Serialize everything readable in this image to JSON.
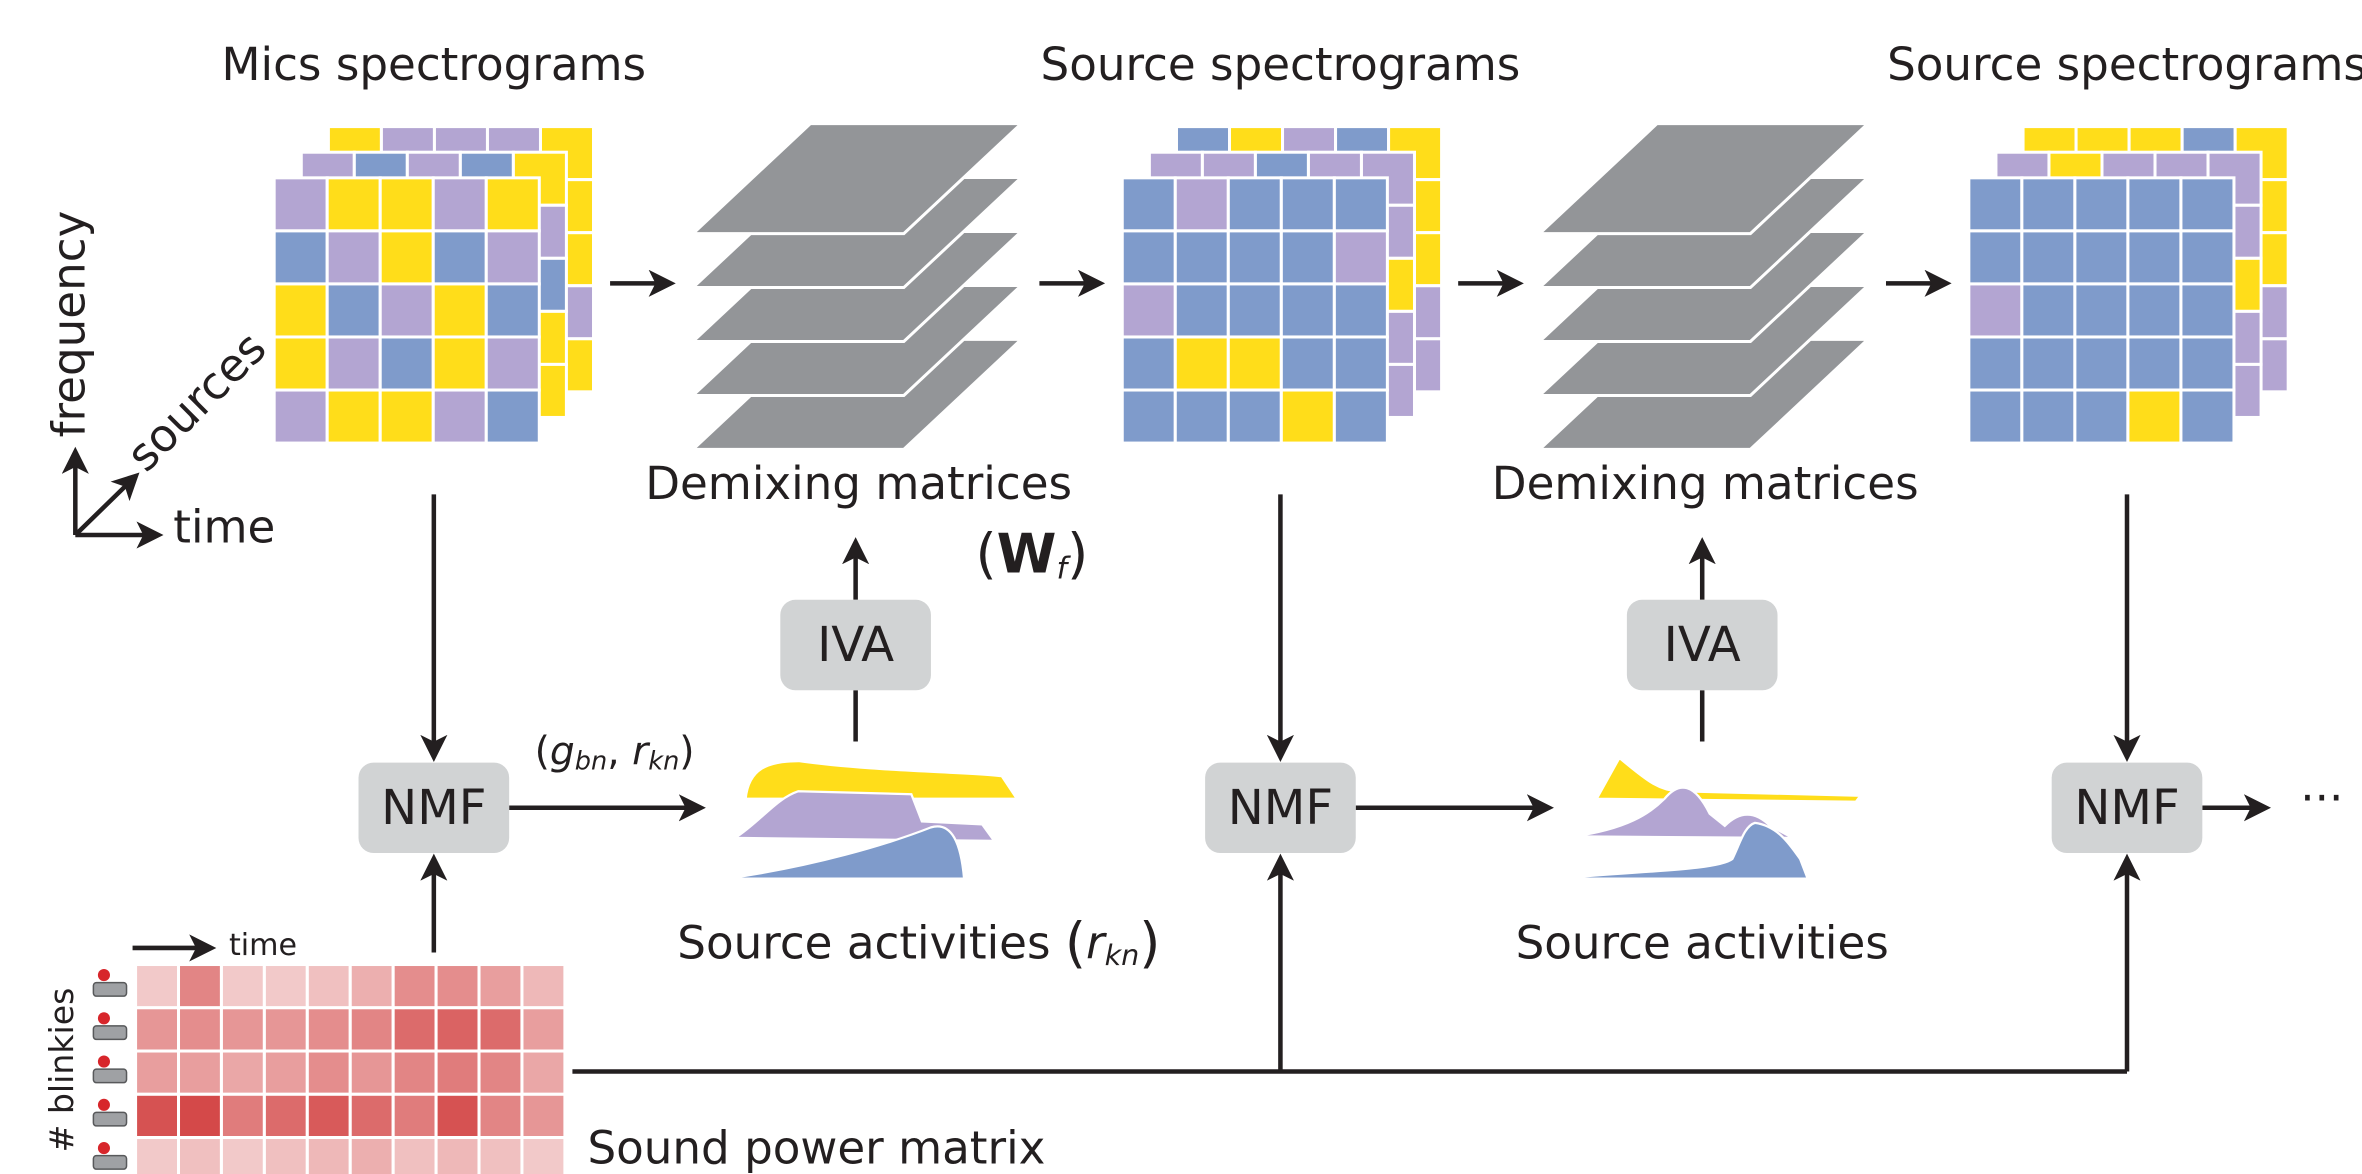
{
  "titles": [
    "Mics spectrograms",
    "Source spectrograms",
    "Source spectrograms"
  ],
  "axes": {
    "frequency": "frequency",
    "sources": "sources",
    "time": "time"
  },
  "demixing_labels": [
    "Demixing matrices",
    "Demixing matrices"
  ],
  "demixing_symbol": {
    "open": "(",
    "var": "W",
    "sub": "f",
    "close": ")"
  },
  "iva": [
    "IVA",
    "IVA"
  ],
  "nmf": [
    "NMF",
    "NMF",
    "NMF"
  ],
  "nmf_output": {
    "open": "(",
    "g": "g",
    "g_sub": "bn",
    "sep": ", ",
    "r": "r",
    "r_sub": "kn",
    "close": ")"
  },
  "activities": [
    {
      "text": "Source activities ",
      "open": "(",
      "var": "r",
      "sub": "kn",
      "close": ")"
    },
    {
      "text": "Source activities"
    }
  ],
  "ellipsis": "···",
  "power_matrix": {
    "label": "Sound power matrix",
    "time": "time",
    "rows": "# blinkies"
  }
}
